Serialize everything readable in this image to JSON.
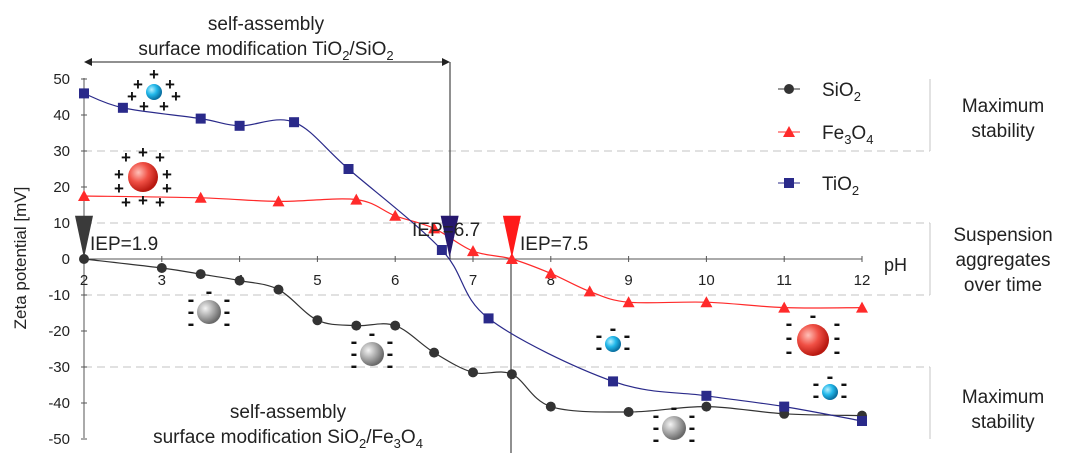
{
  "chart_data": {
    "type": "line",
    "title": "",
    "xlabel": "pH",
    "ylabel": "Zeta potential [mV]",
    "xlim": [
      2,
      12
    ],
    "ylim": [
      -50,
      50
    ],
    "x_ticks": [
      "2",
      "3",
      "4",
      "5",
      "6",
      "7",
      "8",
      "9",
      "10",
      "11",
      "12"
    ],
    "y_ticks": [
      "50",
      "40",
      "30",
      "20",
      "10",
      "0",
      "-10",
      "-20",
      "-30",
      "-40",
      "-50"
    ],
    "grid": "dashed horizontal bands at 30, 10, -10, -30",
    "legend_position": "right",
    "series": [
      {
        "name": "SiO2",
        "label_main": "SiO",
        "label_sub": "2",
        "color": "#333333",
        "marker": "circle",
        "points": [
          [
            2,
            0
          ],
          [
            3,
            -2.5
          ],
          [
            3.5,
            -4.2
          ],
          [
            4,
            -6
          ],
          [
            4.5,
            -8.5
          ],
          [
            5,
            -17
          ],
          [
            5.5,
            -18.5
          ],
          [
            6,
            -18.5
          ],
          [
            6.5,
            -26
          ],
          [
            7,
            -31.5
          ],
          [
            7.5,
            -32
          ],
          [
            8,
            -41
          ],
          [
            9,
            -42.5
          ],
          [
            10,
            -41
          ],
          [
            11,
            -43
          ],
          [
            12,
            -43.5
          ]
        ]
      },
      {
        "name": "Fe3O4",
        "label_main": "Fe",
        "label_sub": "3",
        "label_mid": "O",
        "label_sub2": "4",
        "color": "#ff2a2a",
        "marker": "triangle",
        "points": [
          [
            2,
            17.5
          ],
          [
            3.5,
            17
          ],
          [
            4.5,
            16
          ],
          [
            5.5,
            16.5
          ],
          [
            6,
            12
          ],
          [
            6.5,
            8.5
          ],
          [
            7,
            2.2
          ],
          [
            7.5,
            0
          ],
          [
            8,
            -4
          ],
          [
            8.5,
            -9
          ],
          [
            9,
            -12
          ],
          [
            10,
            -12
          ],
          [
            11,
            -13.5
          ],
          [
            12,
            -13.5
          ]
        ]
      },
      {
        "name": "TiO2",
        "label_main": "TiO",
        "label_sub": "2",
        "color": "#2a2a8a",
        "marker": "square",
        "points": [
          [
            2,
            46
          ],
          [
            2.5,
            42
          ],
          [
            3.5,
            39
          ],
          [
            4,
            37
          ],
          [
            4.7,
            38
          ],
          [
            5.4,
            25
          ],
          [
            6.6,
            2.5
          ],
          [
            7.2,
            -16.5
          ],
          [
            8.8,
            -34
          ],
          [
            10,
            -38
          ],
          [
            11,
            -41
          ],
          [
            12,
            -45
          ]
        ]
      }
    ],
    "iep_markers": [
      {
        "label": "IEP=1.9",
        "ph": 2,
        "color": "#3a3a3a"
      },
      {
        "label": "IEP=6.7",
        "ph": 6.7,
        "color": "#26186e"
      },
      {
        "label": "IEP=7.5",
        "ph": 7.5,
        "color": "#ff1a1a"
      }
    ],
    "annotations": {
      "top_line1": "self-assembly",
      "top_line2_main": "surface modification TiO",
      "top_line2_sub1": "2",
      "top_line2_mid": "/SiO",
      "top_line2_sub2": "2",
      "bottom_line1": "self-assembly",
      "bottom_line2_main": "surface modification SiO",
      "bottom_line2_sub1": "2",
      "bottom_line2_mid": "/Fe",
      "bottom_line2_sub2": "3",
      "bottom_line2_mid2": "O",
      "bottom_line2_sub3": "4"
    },
    "zones": {
      "top_line1": "Maximum",
      "top_line2": "stability",
      "mid_line1": "Suspension",
      "mid_line2": "aggregates",
      "mid_line3": "over time",
      "bottom_line1": "Maximum",
      "bottom_line2": "stability"
    },
    "particle_icons": {
      "positive_sign": "+",
      "negative_sign": "-",
      "icons": [
        "blue-positive-particle-icon",
        "red-positive-particle-icon",
        "gray-negative-particle-icon",
        "blue-negative-particle-icon",
        "red-negative-particle-icon"
      ]
    }
  }
}
